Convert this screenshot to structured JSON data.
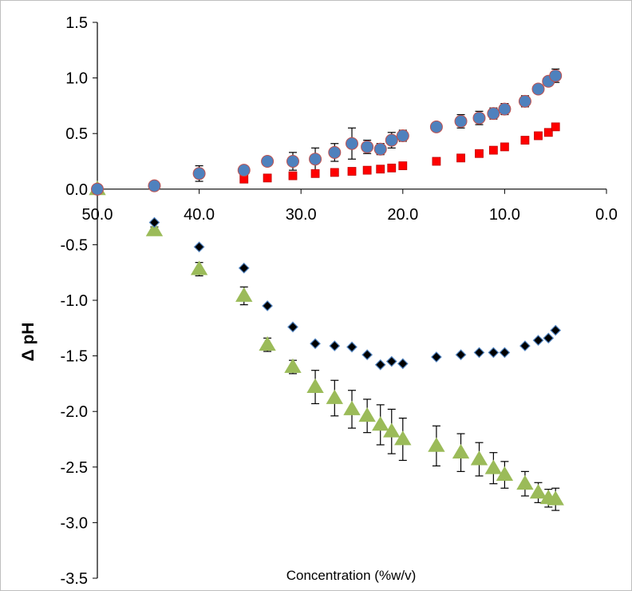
{
  "chart_data": {
    "type": "scatter",
    "title": "",
    "xlabel": "Concentration (%w/v)",
    "ylabel": "Δ pH",
    "xlim": [
      50.0,
      0.0
    ],
    "x_reversed": true,
    "ylim": [
      -3.5,
      1.5
    ],
    "x_ticks": [
      "50.0",
      "40.0",
      "30.0",
      "20.0",
      "10.0",
      "0.0"
    ],
    "y_ticks": [
      "1.5",
      "1.0",
      "0.5",
      "0.0",
      "-0.5",
      "-1.0",
      "-1.5",
      "-2.0",
      "-2.5",
      "-3.0",
      "-3.5"
    ],
    "grid": false,
    "legend": "none",
    "series": [
      {
        "marker": "circle",
        "color": "#4f81bd",
        "edge_color": "#c0504d",
        "points": [
          {
            "x": 50.0,
            "y": 0.0,
            "err": 0.02
          },
          {
            "x": 44.4,
            "y": 0.03,
            "err": 0.03
          },
          {
            "x": 40.0,
            "y": 0.14,
            "err": 0.07
          },
          {
            "x": 35.6,
            "y": 0.17,
            "err": 0.03
          },
          {
            "x": 33.3,
            "y": 0.25,
            "err": 0.04
          },
          {
            "x": 30.8,
            "y": 0.25,
            "err": 0.08
          },
          {
            "x": 28.6,
            "y": 0.27,
            "err": 0.1
          },
          {
            "x": 26.7,
            "y": 0.33,
            "err": 0.08
          },
          {
            "x": 25.0,
            "y": 0.41,
            "err": 0.14
          },
          {
            "x": 23.5,
            "y": 0.38,
            "err": 0.06
          },
          {
            "x": 22.2,
            "y": 0.36,
            "err": 0.05
          },
          {
            "x": 21.1,
            "y": 0.44,
            "err": 0.07
          },
          {
            "x": 20.0,
            "y": 0.48,
            "err": 0.05
          },
          {
            "x": 16.7,
            "y": 0.56,
            "err": 0.03
          },
          {
            "x": 14.3,
            "y": 0.61,
            "err": 0.06
          },
          {
            "x": 12.5,
            "y": 0.64,
            "err": 0.06
          },
          {
            "x": 11.1,
            "y": 0.68,
            "err": 0.05
          },
          {
            "x": 10.0,
            "y": 0.72,
            "err": 0.05
          },
          {
            "x": 8.0,
            "y": 0.79,
            "err": 0.05
          },
          {
            "x": 6.7,
            "y": 0.9,
            "err": 0.04
          },
          {
            "x": 5.7,
            "y": 0.97,
            "err": 0.04
          },
          {
            "x": 5.0,
            "y": 1.02,
            "err": 0.06
          }
        ]
      },
      {
        "marker": "square",
        "color": "#ff0000",
        "edge_color": "#c00000",
        "points": [
          {
            "x": 35.6,
            "y": 0.09
          },
          {
            "x": 33.3,
            "y": 0.1
          },
          {
            "x": 30.8,
            "y": 0.12
          },
          {
            "x": 28.6,
            "y": 0.14
          },
          {
            "x": 26.7,
            "y": 0.15
          },
          {
            "x": 25.0,
            "y": 0.16
          },
          {
            "x": 23.5,
            "y": 0.17
          },
          {
            "x": 22.2,
            "y": 0.18
          },
          {
            "x": 21.1,
            "y": 0.19
          },
          {
            "x": 20.0,
            "y": 0.21
          },
          {
            "x": 16.7,
            "y": 0.25
          },
          {
            "x": 14.3,
            "y": 0.28
          },
          {
            "x": 12.5,
            "y": 0.32
          },
          {
            "x": 11.1,
            "y": 0.35
          },
          {
            "x": 10.0,
            "y": 0.38
          },
          {
            "x": 8.0,
            "y": 0.44
          },
          {
            "x": 6.7,
            "y": 0.48
          },
          {
            "x": 5.7,
            "y": 0.51
          },
          {
            "x": 5.0,
            "y": 0.56
          }
        ]
      },
      {
        "marker": "diamond",
        "color": "#000000",
        "edge_color": "#4f81bd",
        "points": [
          {
            "x": 44.4,
            "y": -0.3
          },
          {
            "x": 40.0,
            "y": -0.52
          },
          {
            "x": 35.6,
            "y": -0.71
          },
          {
            "x": 33.3,
            "y": -1.05
          },
          {
            "x": 30.8,
            "y": -1.24
          },
          {
            "x": 28.6,
            "y": -1.39
          },
          {
            "x": 26.7,
            "y": -1.41
          },
          {
            "x": 25.0,
            "y": -1.42
          },
          {
            "x": 23.5,
            "y": -1.49
          },
          {
            "x": 22.2,
            "y": -1.58
          },
          {
            "x": 21.1,
            "y": -1.55
          },
          {
            "x": 20.0,
            "y": -1.57
          },
          {
            "x": 16.7,
            "y": -1.51
          },
          {
            "x": 14.3,
            "y": -1.49
          },
          {
            "x": 12.5,
            "y": -1.47
          },
          {
            "x": 11.1,
            "y": -1.47
          },
          {
            "x": 10.0,
            "y": -1.47
          },
          {
            "x": 8.0,
            "y": -1.41
          },
          {
            "x": 6.7,
            "y": -1.36
          },
          {
            "x": 5.7,
            "y": -1.34
          },
          {
            "x": 5.0,
            "y": -1.27
          }
        ]
      },
      {
        "marker": "triangle",
        "color": "#9bbb59",
        "edge_color": "#9bbb59",
        "points": [
          {
            "x": 50.0,
            "y": 0.0,
            "err": 0.0
          },
          {
            "x": 44.4,
            "y": -0.37,
            "err": 0.03
          },
          {
            "x": 40.0,
            "y": -0.72,
            "err": 0.06
          },
          {
            "x": 35.6,
            "y": -0.96,
            "err": 0.08
          },
          {
            "x": 33.3,
            "y": -1.4,
            "err": 0.06
          },
          {
            "x": 30.8,
            "y": -1.6,
            "err": 0.06
          },
          {
            "x": 28.6,
            "y": -1.78,
            "err": 0.15
          },
          {
            "x": 26.7,
            "y": -1.88,
            "err": 0.16
          },
          {
            "x": 25.0,
            "y": -1.98,
            "err": 0.17
          },
          {
            "x": 23.5,
            "y": -2.04,
            "err": 0.15
          },
          {
            "x": 22.2,
            "y": -2.12,
            "err": 0.18
          },
          {
            "x": 21.1,
            "y": -2.18,
            "err": 0.2
          },
          {
            "x": 20.0,
            "y": -2.25,
            "err": 0.19
          },
          {
            "x": 16.7,
            "y": -2.31,
            "err": 0.18
          },
          {
            "x": 14.3,
            "y": -2.37,
            "err": 0.17
          },
          {
            "x": 12.5,
            "y": -2.43,
            "err": 0.15
          },
          {
            "x": 11.1,
            "y": -2.51,
            "err": 0.14
          },
          {
            "x": 10.0,
            "y": -2.57,
            "err": 0.12
          },
          {
            "x": 8.0,
            "y": -2.65,
            "err": 0.11
          },
          {
            "x": 6.7,
            "y": -2.73,
            "err": 0.09
          },
          {
            "x": 5.7,
            "y": -2.78,
            "err": 0.08
          },
          {
            "x": 5.0,
            "y": -2.79,
            "err": 0.1
          }
        ]
      }
    ]
  }
}
